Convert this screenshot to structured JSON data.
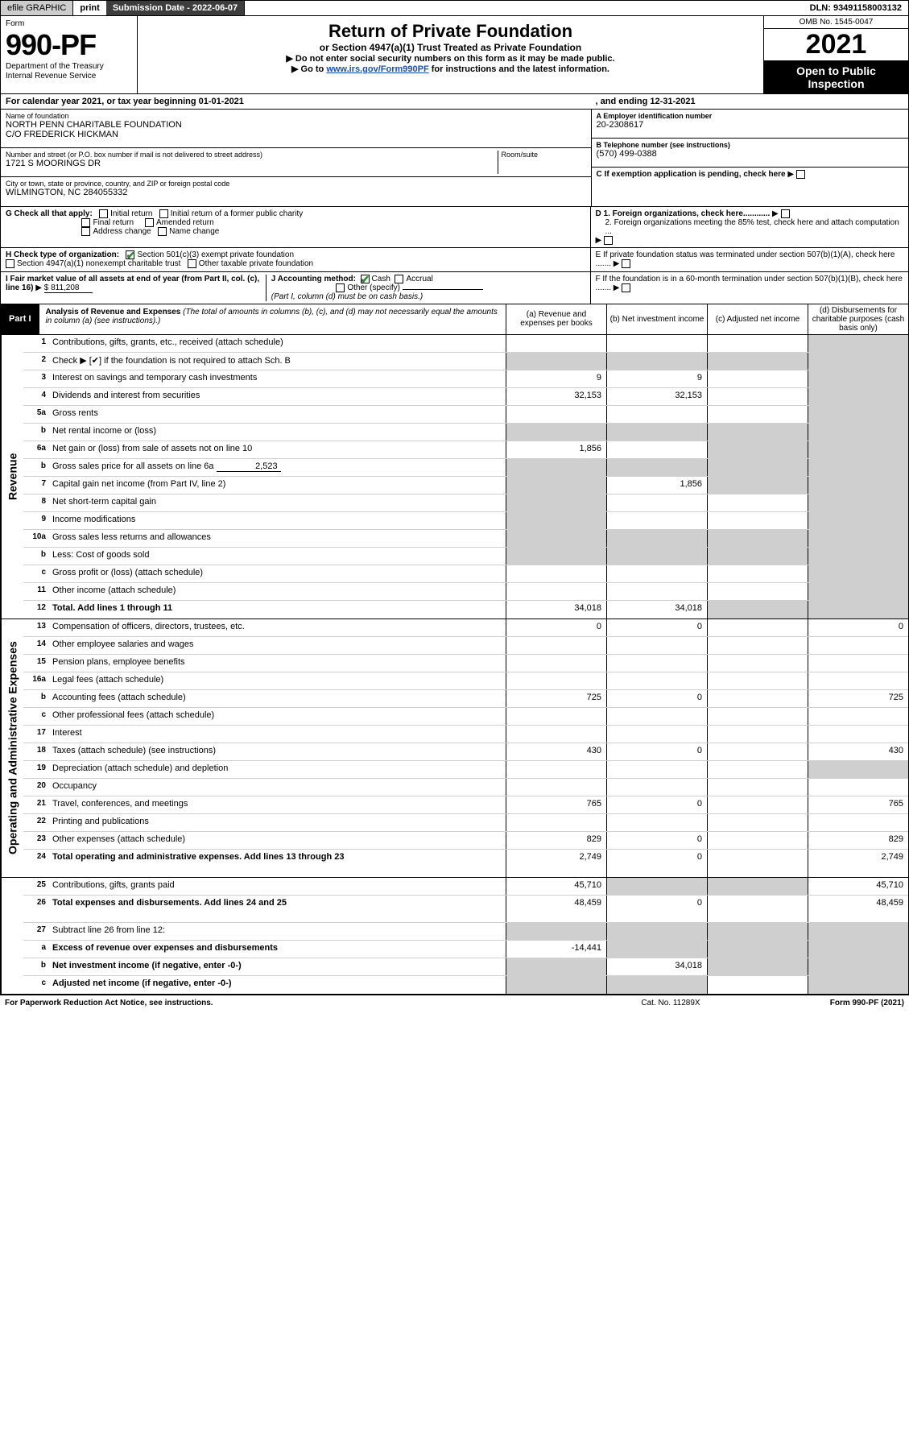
{
  "topbar": {
    "efile": "efile GRAPHIC",
    "print": "print",
    "submission_label": "Submission Date - 2022-06-07",
    "dln_label": "DLN: 93491158003132"
  },
  "header": {
    "form_word": "Form",
    "form_number": "990-PF",
    "dept": "Department of the Treasury\nInternal Revenue Service",
    "title": "Return of Private Foundation",
    "subtitle": "or Section 4947(a)(1) Trust Treated as Private Foundation",
    "instr1": "▶ Do not enter social security numbers on this form as it may be made public.",
    "instr2_prefix": "▶ Go to ",
    "instr2_link": "www.irs.gov/Form990PF",
    "instr2_suffix": " for instructions and the latest information.",
    "omb": "OMB No. 1545-0047",
    "year": "2021",
    "open": "Open to Public Inspection"
  },
  "calendar": {
    "left": "For calendar year 2021, or tax year beginning 01-01-2021",
    "right": ", and ending 12-31-2021"
  },
  "info": {
    "name_lbl": "Name of foundation",
    "name_val": "NORTH PENN CHARITABLE FOUNDATION\nC/O FREDERICK HICKMAN",
    "addr_lbl": "Number and street (or P.O. box number if mail is not delivered to street address)",
    "room_lbl": "Room/suite",
    "addr_val": "1721 S MOORINGS DR",
    "city_lbl": "City or town, state or province, country, and ZIP or foreign postal code",
    "city_val": "WILMINGTON, NC 284055332",
    "ein_lbl": "A Employer identification number",
    "ein_val": "20-2308617",
    "tel_lbl": "B Telephone number (see instructions)",
    "tel_val": "(570) 499-0388",
    "c_lbl": "C If exemption application is pending, check here",
    "d1_lbl": "D 1. Foreign organizations, check here............",
    "d2_lbl": "2. Foreign organizations meeting the 85% test, check here and attach computation ...",
    "e_lbl": "E  If private foundation status was terminated under section 507(b)(1)(A), check here .......",
    "f_lbl": "F  If the foundation is in a 60-month termination under section 507(b)(1)(B), check here .......",
    "g_lbl": "G Check all that apply:",
    "g_opts": [
      "Initial return",
      "Initial return of a former public charity",
      "Final return",
      "Amended return",
      "Address change",
      "Name change"
    ],
    "h_lbl": "H Check type of organization:",
    "h_opts": [
      "Section 501(c)(3) exempt private foundation",
      "Section 4947(a)(1) nonexempt charitable trust",
      "Other taxable private foundation"
    ],
    "i_lbl": "I Fair market value of all assets at end of year (from Part II, col. (c), line 16)",
    "i_val": "$  811,208",
    "j_lbl": "J Accounting method:",
    "j_opts": [
      "Cash",
      "Accrual",
      "Other (specify)"
    ],
    "j_note": "(Part I, column (d) must be on cash basis.)"
  },
  "part1": {
    "tag": "Part I",
    "title": "Analysis of Revenue and Expenses",
    "note": " (The total of amounts in columns (b), (c), and (d) may not necessarily equal the amounts in column (a) (see instructions).)",
    "cols": {
      "a": "(a)   Revenue and expenses per books",
      "b": "(b)   Net investment income",
      "c": "(c)   Adjusted net income",
      "d": "(d)  Disbursements for charitable purposes (cash basis only)"
    }
  },
  "sides": {
    "rev": "Revenue",
    "exp": "Operating and Administrative Expenses"
  },
  "rows": {
    "r1": {
      "n": "1",
      "d": "Contributions, gifts, grants, etc., received (attach schedule)"
    },
    "r2": {
      "n": "2",
      "d": "Check ▶  [✔]  if the foundation is not required to attach Sch. B"
    },
    "r3": {
      "n": "3",
      "d": "Interest on savings and temporary cash investments",
      "a": "9",
      "b": "9"
    },
    "r4": {
      "n": "4",
      "d": "Dividends and interest from securities",
      "a": "32,153",
      "b": "32,153"
    },
    "r5a": {
      "n": "5a",
      "d": "Gross rents"
    },
    "r5b": {
      "n": "b",
      "d": "Net rental income or (loss)",
      "inline_pre": ""
    },
    "r6a": {
      "n": "6a",
      "d": "Net gain or (loss) from sale of assets not on line 10",
      "a": "1,856"
    },
    "r6b": {
      "n": "b",
      "d": "Gross sales price for all assets on line 6a",
      "inline": "2,523"
    },
    "r7": {
      "n": "7",
      "d": "Capital gain net income (from Part IV, line 2)",
      "b": "1,856"
    },
    "r8": {
      "n": "8",
      "d": "Net short-term capital gain"
    },
    "r9": {
      "n": "9",
      "d": "Income modifications"
    },
    "r10a": {
      "n": "10a",
      "d": "Gross sales less returns and allowances"
    },
    "r10b": {
      "n": "b",
      "d": "Less: Cost of goods sold"
    },
    "r10c": {
      "n": "c",
      "d": "Gross profit or (loss) (attach schedule)"
    },
    "r11": {
      "n": "11",
      "d": "Other income (attach schedule)"
    },
    "r12": {
      "n": "12",
      "d": "Total. Add lines 1 through 11",
      "a": "34,018",
      "b": "34,018",
      "bold": true
    },
    "r13": {
      "n": "13",
      "d": "Compensation of officers, directors, trustees, etc.",
      "a": "0",
      "b": "0",
      "dd": "0"
    },
    "r14": {
      "n": "14",
      "d": "Other employee salaries and wages"
    },
    "r15": {
      "n": "15",
      "d": "Pension plans, employee benefits"
    },
    "r16a": {
      "n": "16a",
      "d": "Legal fees (attach schedule)"
    },
    "r16b": {
      "n": "b",
      "d": "Accounting fees (attach schedule)",
      "a": "725",
      "b": "0",
      "dd": "725"
    },
    "r16c": {
      "n": "c",
      "d": "Other professional fees (attach schedule)"
    },
    "r17": {
      "n": "17",
      "d": "Interest"
    },
    "r18": {
      "n": "18",
      "d": "Taxes (attach schedule) (see instructions)",
      "a": "430",
      "b": "0",
      "dd": "430"
    },
    "r19": {
      "n": "19",
      "d": "Depreciation (attach schedule) and depletion"
    },
    "r20": {
      "n": "20",
      "d": "Occupancy"
    },
    "r21": {
      "n": "21",
      "d": "Travel, conferences, and meetings",
      "a": "765",
      "b": "0",
      "dd": "765"
    },
    "r22": {
      "n": "22",
      "d": "Printing and publications"
    },
    "r23": {
      "n": "23",
      "d": "Other expenses (attach schedule)",
      "a": "829",
      "b": "0",
      "dd": "829"
    },
    "r24": {
      "n": "24",
      "d": "Total operating and administrative expenses. Add lines 13 through 23",
      "a": "2,749",
      "b": "0",
      "dd": "2,749",
      "bold": true,
      "twoline": true
    },
    "r25": {
      "n": "25",
      "d": "Contributions, gifts, grants paid",
      "a": "45,710",
      "dd": "45,710"
    },
    "r26": {
      "n": "26",
      "d": "Total expenses and disbursements. Add lines 24 and 25",
      "a": "48,459",
      "b": "0",
      "dd": "48,459",
      "bold": true,
      "twoline": true
    },
    "r27": {
      "n": "27",
      "d": "Subtract line 26 from line 12:"
    },
    "r27a": {
      "n": "a",
      "d": "Excess of revenue over expenses and disbursements",
      "a": "-14,441",
      "bold": true
    },
    "r27b": {
      "n": "b",
      "d": "Net investment income (if negative, enter -0-)",
      "b": "34,018",
      "bold": true
    },
    "r27c": {
      "n": "c",
      "d": "Adjusted net income (if negative, enter -0-)",
      "bold": true
    }
  },
  "footer": {
    "pra": "For Paperwork Reduction Act Notice, see instructions.",
    "cat": "Cat. No. 11289X",
    "form": "Form 990-PF (2021)"
  },
  "shading": {
    "revenue_d_all": true,
    "row_specific": {
      "r2": [
        "a",
        "b",
        "c"
      ],
      "r5b": [
        "a",
        "b",
        "c"
      ],
      "r6a": [
        "c"
      ],
      "r6b": [
        "a",
        "b",
        "c"
      ],
      "r7": [
        "a",
        "c"
      ],
      "r8": [
        "a"
      ],
      "r9": [
        "a"
      ],
      "r10a": [
        "a",
        "b",
        "c"
      ],
      "r10b": [
        "a",
        "b",
        "c"
      ],
      "r12": [
        "c"
      ],
      "r19": [
        "dd"
      ],
      "r25": [
        "b",
        "c"
      ],
      "r27": [
        "a",
        "b",
        "c",
        "dd"
      ],
      "r27a": [
        "b",
        "c",
        "dd"
      ],
      "r27b": [
        "a",
        "c",
        "dd"
      ],
      "r27c": [
        "a",
        "b",
        "dd"
      ]
    }
  }
}
